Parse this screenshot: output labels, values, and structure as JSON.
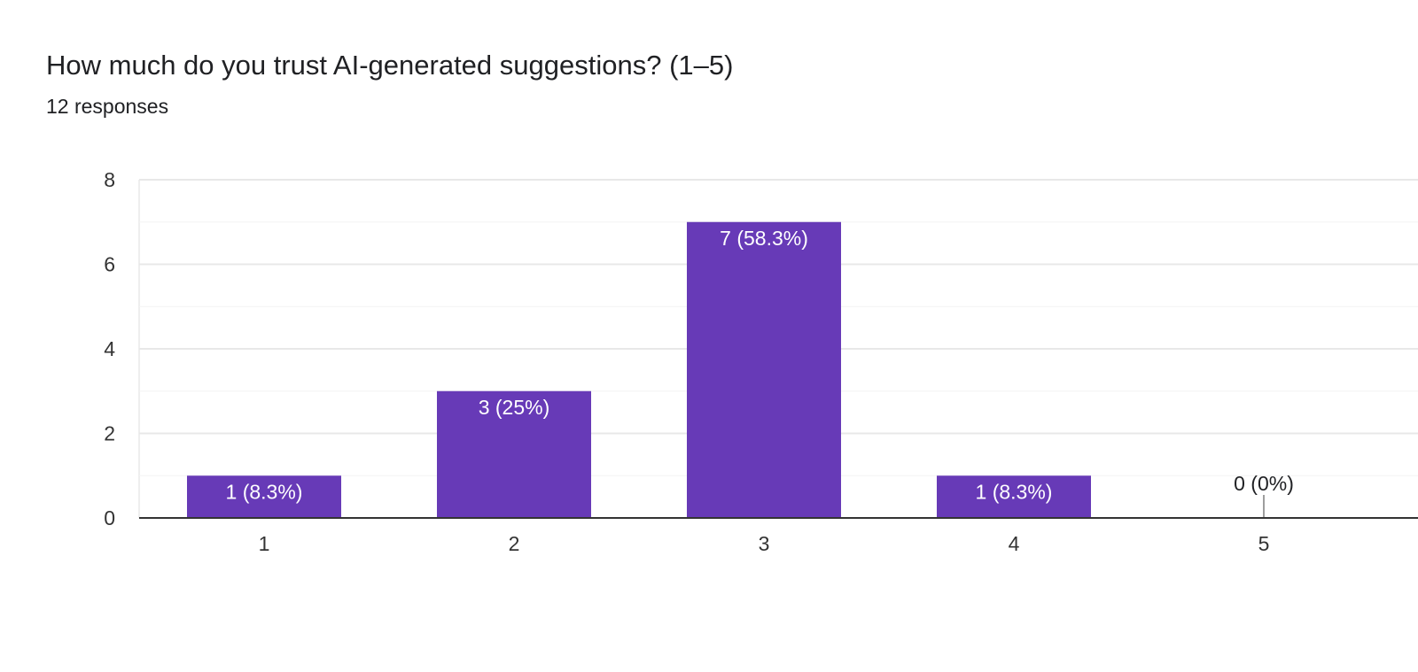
{
  "question": {
    "title": "How much do you trust AI-generated suggestions? (1–5)",
    "responses": "12 responses"
  },
  "colors": {
    "bar": "#673AB7",
    "grid": "#eeeeee",
    "axis": "#333333",
    "label_inside": "#ffffff",
    "label_outside": "#202124"
  },
  "chart_data": {
    "type": "bar",
    "title": "",
    "xlabel": "",
    "ylabel": "",
    "categories": [
      "1",
      "2",
      "3",
      "4",
      "5"
    ],
    "values": [
      1,
      3,
      7,
      1,
      0
    ],
    "labels": [
      "1 (8.3%)",
      "3 (25%)",
      "7 (58.3%)",
      "1 (8.3%)",
      "0 (0%)"
    ],
    "ylim": [
      0,
      8
    ],
    "yticks": [
      "0",
      "2",
      "4",
      "6",
      "8"
    ],
    "grid": true,
    "legend": "none"
  }
}
